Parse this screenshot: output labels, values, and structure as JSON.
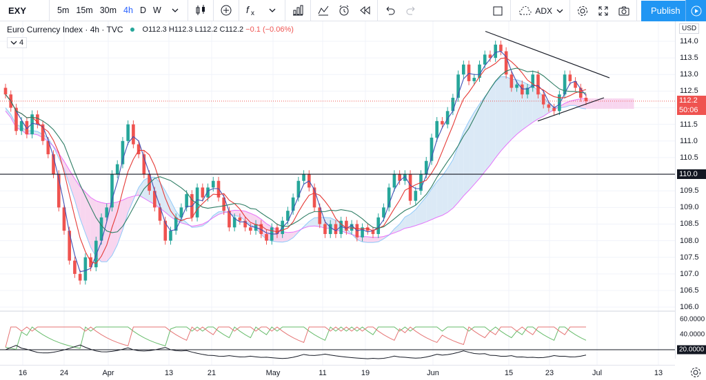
{
  "toolbar": {
    "symbol": "EXY",
    "intervals": [
      "5m",
      "15m",
      "30m",
      "4h",
      "D",
      "W"
    ],
    "active_interval": "4h",
    "indicator_label": "ADX",
    "publish_label": "Publish",
    "icons": [
      "chevron-down-icon",
      "candles-icon",
      "plus-circle-icon",
      "fx-icon",
      "bar-chart-icon",
      "compare-icon",
      "alarm-icon",
      "replay-icon",
      "undo-icon",
      "redo-icon",
      "square-icon",
      "cloud-icon",
      "settings-icon",
      "fullscreen-icon",
      "camera-icon",
      "play-icon"
    ]
  },
  "legend": {
    "title": "Euro Currency Index · 4h · TVC",
    "open": "O112.3",
    "high": "H112.3",
    "low": "L112.2",
    "close": "C112.2",
    "change": "−0.1 (−0.06%)",
    "indicator_count": "4"
  },
  "price_scale": {
    "currency": "USD",
    "ticks": [
      "114.0",
      "113.5",
      "113.0",
      "112.5",
      "111.5",
      "111.0",
      "110.5",
      "109.5",
      "109.0",
      "108.5",
      "108.0",
      "107.5",
      "107.0",
      "106.5",
      "106.0"
    ],
    "last_price": "112.2",
    "countdown": "50:06",
    "level_line": "110.0"
  },
  "osc_scale": {
    "ticks": [
      "60.0000",
      "40.0000",
      "20.0000"
    ]
  },
  "time_axis": {
    "ticks": [
      "16",
      "24",
      "Apr",
      "13",
      "21",
      "May",
      "11",
      "19",
      "Jun",
      "15",
      "23",
      "Jul",
      "13"
    ]
  },
  "colors": {
    "bull": "#26a69a",
    "bear": "#ef5350",
    "accent": "#2962ff",
    "cloud_bull": "#dbe9f6",
    "cloud_bear": "#f8d6ef"
  },
  "chart_data": {
    "type": "candlestick",
    "ylim": [
      105.9,
      114.6
    ],
    "price_axis_levels": [
      114.0,
      113.5,
      113.0,
      112.5,
      112.0,
      111.5,
      111.0,
      110.5,
      110.0,
      109.5,
      109.0,
      108.5,
      108.0,
      107.5,
      107.0,
      106.5,
      106.0
    ],
    "last_price": 112.2,
    "horizontal_level": 110.0,
    "closes": [
      112.4,
      112.0,
      111.3,
      111.6,
      111.2,
      111.8,
      111.5,
      111.0,
      110.6,
      110.0,
      109.0,
      108.3,
      107.4,
      107.0,
      106.8,
      107.5,
      107.2,
      108.0,
      108.7,
      109.0,
      110.0,
      110.3,
      111.0,
      111.5,
      110.9,
      110.6,
      110.0,
      109.5,
      109.0,
      108.6,
      108.0,
      108.3,
      108.7,
      109.0,
      109.4,
      108.7,
      109.6,
      109.3,
      109.6,
      109.8,
      109.3,
      108.9,
      108.4,
      108.7,
      108.6,
      108.4,
      108.3,
      108.5,
      108.2,
      108.0,
      108.4,
      108.2,
      108.6,
      108.9,
      109.3,
      109.8,
      110.0,
      109.6,
      109.0,
      108.5,
      108.2,
      108.5,
      108.2,
      108.6,
      108.3,
      108.5,
      108.1,
      108.4,
      108.3,
      108.2,
      108.7,
      109.0,
      109.6,
      110.0,
      109.8,
      110.0,
      109.2,
      109.5,
      110.0,
      110.4,
      111.1,
      111.6,
      111.5,
      111.9,
      112.3,
      113.0,
      113.3,
      112.8,
      112.9,
      113.3,
      113.6,
      113.5,
      113.9,
      113.7,
      113.0,
      112.6,
      112.7,
      112.4,
      112.6,
      113.0,
      112.4,
      112.1,
      112.0,
      111.9,
      112.4,
      113.0,
      112.8,
      112.6,
      112.3,
      112.2
    ],
    "ma_fast_last": 112.3,
    "ma_slow_last": 112.4,
    "oscillator": {
      "name": "ADX",
      "ylim": [
        0,
        70
      ],
      "levels": [
        60,
        40,
        20
      ],
      "level_line": 20
    }
  }
}
